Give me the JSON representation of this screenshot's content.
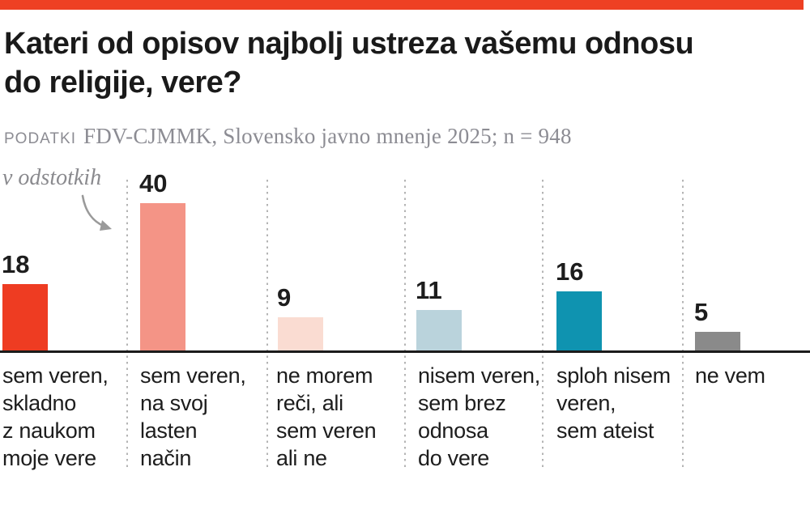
{
  "header": {
    "title": "Kateri od opisov najbolj ustreza vašemu odnosu\ndo religije, vere?",
    "source_label": "PODATKI",
    "source_text": "FDV-CJMMK, Slovensko javno mnenje 2025; n = 948"
  },
  "annotation": {
    "unit_note": "v odstotkih"
  },
  "chart_data": {
    "type": "bar",
    "title": "Kateri od opisov najbolj ustreza vašemu odnosu do religije, vere?",
    "unit": "percent",
    "source": "FDV-CJMMK, Slovensko javno mnenje 2025; n = 948",
    "ylim": [
      0,
      40
    ],
    "grid": "dotted vertical column separators",
    "accent_color": "#ee4023",
    "categories": [
      "sem veren, skladno z naukom moje vere",
      "sem veren, na svoj lasten način",
      "ne morem reči, ali sem veren ali ne",
      "nisem veren, sem brez odnosa do vere",
      "sploh nisem veren, sem ateist",
      "ne vem"
    ],
    "values": [
      18,
      40,
      9,
      11,
      16,
      5
    ],
    "bars": [
      {
        "label": "sem veren,\nskladno\nz naukom\nmoje vere",
        "value": 18,
        "color": "#ee3c22"
      },
      {
        "label": "sem veren,\nna svoj\nlasten\nnačin",
        "value": 40,
        "color": "#f49486"
      },
      {
        "label": "ne morem\nreči, ali\nsem veren\nali ne",
        "value": 9,
        "color": "#fadcd2"
      },
      {
        "label": "nisem veren,\nsem brez\nodnosa\ndo vere",
        "value": 11,
        "color": "#bad3dc"
      },
      {
        "label": "sploh nisem\nveren,\nsem ateist",
        "value": 16,
        "color": "#0f93b0"
      },
      {
        "label": "ne vem",
        "value": 5,
        "color": "#8a8a8a"
      }
    ]
  }
}
